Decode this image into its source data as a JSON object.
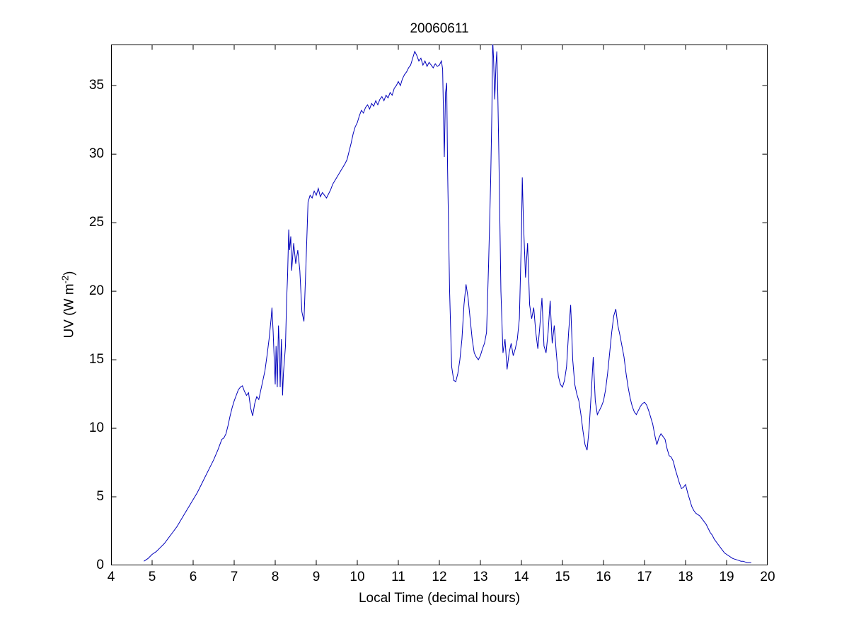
{
  "figure": {
    "background": "#ffffff"
  },
  "chart_data": {
    "type": "line",
    "title": "20060611",
    "xlabel": "Local Time (decimal hours)",
    "ylabel_parts": {
      "prefix": "UV (W m",
      "sup": "-2",
      "suffix": ")"
    },
    "xlim": [
      4,
      20
    ],
    "ylim": [
      0,
      38
    ],
    "xticks": [
      4,
      5,
      6,
      7,
      8,
      9,
      10,
      11,
      12,
      13,
      14,
      15,
      16,
      17,
      18,
      19,
      20
    ],
    "yticks": [
      0,
      5,
      10,
      15,
      20,
      25,
      30,
      35
    ],
    "grid": false,
    "legend": "none",
    "tick_direction": "in",
    "box": true,
    "line_color": "#0000bb",
    "axis_color": "#000000",
    "series": [
      {
        "points": [
          [
            4.8,
            0.3
          ],
          [
            4.9,
            0.5
          ],
          [
            5.0,
            0.8
          ],
          [
            5.1,
            1.0
          ],
          [
            5.2,
            1.3
          ],
          [
            5.3,
            1.6
          ],
          [
            5.4,
            2.0
          ],
          [
            5.5,
            2.4
          ],
          [
            5.6,
            2.8
          ],
          [
            5.7,
            3.3
          ],
          [
            5.8,
            3.8
          ],
          [
            5.9,
            4.3
          ],
          [
            6.0,
            4.8
          ],
          [
            6.1,
            5.3
          ],
          [
            6.2,
            5.9
          ],
          [
            6.3,
            6.5
          ],
          [
            6.4,
            7.1
          ],
          [
            6.5,
            7.7
          ],
          [
            6.6,
            8.4
          ],
          [
            6.65,
            8.8
          ],
          [
            6.7,
            9.2
          ],
          [
            6.75,
            9.3
          ],
          [
            6.8,
            9.6
          ],
          [
            6.85,
            10.2
          ],
          [
            6.9,
            10.9
          ],
          [
            6.95,
            11.5
          ],
          [
            7.0,
            12.0
          ],
          [
            7.05,
            12.4
          ],
          [
            7.1,
            12.8
          ],
          [
            7.15,
            13.0
          ],
          [
            7.2,
            13.1
          ],
          [
            7.25,
            12.7
          ],
          [
            7.3,
            12.4
          ],
          [
            7.35,
            12.6
          ],
          [
            7.4,
            11.5
          ],
          [
            7.45,
            10.9
          ],
          [
            7.5,
            11.8
          ],
          [
            7.55,
            12.3
          ],
          [
            7.6,
            12.1
          ],
          [
            7.65,
            12.8
          ],
          [
            7.7,
            13.5
          ],
          [
            7.75,
            14.2
          ],
          [
            7.8,
            15.3
          ],
          [
            7.85,
            16.5
          ],
          [
            7.9,
            18.0
          ],
          [
            7.92,
            18.8
          ],
          [
            7.95,
            17.0
          ],
          [
            8.0,
            13.2
          ],
          [
            8.02,
            16.0
          ],
          [
            8.05,
            13.0
          ],
          [
            8.08,
            17.5
          ],
          [
            8.1,
            16.0
          ],
          [
            8.12,
            13.0
          ],
          [
            8.15,
            16.5
          ],
          [
            8.18,
            12.4
          ],
          [
            8.2,
            14.0
          ],
          [
            8.25,
            16.0
          ],
          [
            8.28,
            19.5
          ],
          [
            8.3,
            21.0
          ],
          [
            8.33,
            24.5
          ],
          [
            8.35,
            23.0
          ],
          [
            8.38,
            24.0
          ],
          [
            8.4,
            21.5
          ],
          [
            8.45,
            23.5
          ],
          [
            8.5,
            22.0
          ],
          [
            8.55,
            23.0
          ],
          [
            8.6,
            21.5
          ],
          [
            8.65,
            18.5
          ],
          [
            8.7,
            17.8
          ],
          [
            8.75,
            22.0
          ],
          [
            8.8,
            26.5
          ],
          [
            8.85,
            27.0
          ],
          [
            8.9,
            26.8
          ],
          [
            8.95,
            27.3
          ],
          [
            9.0,
            27.0
          ],
          [
            9.05,
            27.5
          ],
          [
            9.1,
            26.9
          ],
          [
            9.15,
            27.2
          ],
          [
            9.2,
            27.0
          ],
          [
            9.25,
            26.8
          ],
          [
            9.3,
            27.1
          ],
          [
            9.35,
            27.4
          ],
          [
            9.4,
            27.8
          ],
          [
            9.5,
            28.3
          ],
          [
            9.6,
            28.8
          ],
          [
            9.7,
            29.3
          ],
          [
            9.75,
            29.6
          ],
          [
            9.8,
            30.2
          ],
          [
            9.85,
            30.8
          ],
          [
            9.9,
            31.5
          ],
          [
            9.95,
            32.0
          ],
          [
            10.0,
            32.3
          ],
          [
            10.05,
            32.8
          ],
          [
            10.1,
            33.2
          ],
          [
            10.15,
            33.0
          ],
          [
            10.2,
            33.4
          ],
          [
            10.25,
            33.6
          ],
          [
            10.3,
            33.3
          ],
          [
            10.35,
            33.7
          ],
          [
            10.4,
            33.5
          ],
          [
            10.45,
            33.9
          ],
          [
            10.5,
            33.6
          ],
          [
            10.55,
            34.0
          ],
          [
            10.6,
            34.2
          ],
          [
            10.65,
            33.9
          ],
          [
            10.7,
            34.3
          ],
          [
            10.75,
            34.1
          ],
          [
            10.8,
            34.5
          ],
          [
            10.85,
            34.3
          ],
          [
            10.9,
            34.8
          ],
          [
            10.95,
            35.0
          ],
          [
            11.0,
            35.3
          ],
          [
            11.05,
            35.0
          ],
          [
            11.1,
            35.5
          ],
          [
            11.15,
            35.8
          ],
          [
            11.2,
            36.0
          ],
          [
            11.25,
            36.3
          ],
          [
            11.3,
            36.5
          ],
          [
            11.35,
            37.0
          ],
          [
            11.4,
            37.5
          ],
          [
            11.45,
            37.2
          ],
          [
            11.5,
            36.8
          ],
          [
            11.55,
            37.0
          ],
          [
            11.6,
            36.5
          ],
          [
            11.65,
            36.8
          ],
          [
            11.7,
            36.4
          ],
          [
            11.75,
            36.7
          ],
          [
            11.8,
            36.5
          ],
          [
            11.85,
            36.3
          ],
          [
            11.9,
            36.6
          ],
          [
            11.95,
            36.4
          ],
          [
            12.0,
            36.5
          ],
          [
            12.05,
            36.8
          ],
          [
            12.08,
            36.2
          ],
          [
            12.1,
            33.0
          ],
          [
            12.12,
            29.8
          ],
          [
            12.15,
            34.5
          ],
          [
            12.18,
            35.2
          ],
          [
            12.2,
            29.0
          ],
          [
            12.25,
            20.0
          ],
          [
            12.3,
            14.5
          ],
          [
            12.35,
            13.5
          ],
          [
            12.4,
            13.4
          ],
          [
            12.45,
            14.0
          ],
          [
            12.5,
            15.0
          ],
          [
            12.55,
            16.5
          ],
          [
            12.6,
            19.0
          ],
          [
            12.65,
            20.5
          ],
          [
            12.7,
            19.5
          ],
          [
            12.75,
            18.0
          ],
          [
            12.8,
            16.5
          ],
          [
            12.85,
            15.5
          ],
          [
            12.9,
            15.2
          ],
          [
            12.95,
            15.0
          ],
          [
            13.0,
            15.3
          ],
          [
            13.05,
            15.8
          ],
          [
            13.1,
            16.2
          ],
          [
            13.15,
            17.0
          ],
          [
            13.2,
            22.0
          ],
          [
            13.25,
            28.0
          ],
          [
            13.28,
            33.0
          ],
          [
            13.3,
            38.3
          ],
          [
            13.32,
            37.0
          ],
          [
            13.35,
            34.0
          ],
          [
            13.38,
            36.5
          ],
          [
            13.4,
            37.5
          ],
          [
            13.42,
            35.0
          ],
          [
            13.45,
            30.0
          ],
          [
            13.5,
            20.0
          ],
          [
            13.55,
            15.5
          ],
          [
            13.6,
            16.5
          ],
          [
            13.65,
            14.3
          ],
          [
            13.7,
            15.5
          ],
          [
            13.75,
            16.2
          ],
          [
            13.8,
            15.3
          ],
          [
            13.85,
            15.8
          ],
          [
            13.9,
            16.5
          ],
          [
            13.95,
            18.0
          ],
          [
            14.0,
            24.0
          ],
          [
            14.02,
            28.3
          ],
          [
            14.05,
            25.0
          ],
          [
            14.1,
            21.0
          ],
          [
            14.15,
            23.5
          ],
          [
            14.2,
            19.0
          ],
          [
            14.25,
            18.0
          ],
          [
            14.3,
            18.8
          ],
          [
            14.35,
            17.0
          ],
          [
            14.4,
            15.8
          ],
          [
            14.45,
            17.5
          ],
          [
            14.5,
            19.5
          ],
          [
            14.55,
            16.0
          ],
          [
            14.6,
            15.5
          ],
          [
            14.65,
            17.0
          ],
          [
            14.7,
            19.3
          ],
          [
            14.75,
            16.2
          ],
          [
            14.8,
            17.5
          ],
          [
            14.85,
            15.5
          ],
          [
            14.9,
            13.8
          ],
          [
            14.95,
            13.2
          ],
          [
            15.0,
            13.0
          ],
          [
            15.05,
            13.5
          ],
          [
            15.1,
            14.5
          ],
          [
            15.15,
            17.0
          ],
          [
            15.2,
            19.0
          ],
          [
            15.25,
            15.0
          ],
          [
            15.3,
            13.2
          ],
          [
            15.35,
            12.5
          ],
          [
            15.4,
            12.0
          ],
          [
            15.45,
            11.0
          ],
          [
            15.5,
            9.8
          ],
          [
            15.55,
            8.8
          ],
          [
            15.6,
            8.4
          ],
          [
            15.65,
            10.0
          ],
          [
            15.7,
            12.5
          ],
          [
            15.75,
            15.2
          ],
          [
            15.8,
            12.0
          ],
          [
            15.85,
            11.0
          ],
          [
            15.9,
            11.3
          ],
          [
            15.95,
            11.6
          ],
          [
            16.0,
            12.0
          ],
          [
            16.05,
            12.8
          ],
          [
            16.1,
            14.0
          ],
          [
            16.15,
            15.5
          ],
          [
            16.2,
            17.0
          ],
          [
            16.25,
            18.2
          ],
          [
            16.3,
            18.7
          ],
          [
            16.35,
            17.5
          ],
          [
            16.4,
            16.8
          ],
          [
            16.45,
            16.0
          ],
          [
            16.5,
            15.2
          ],
          [
            16.55,
            14.0
          ],
          [
            16.6,
            13.0
          ],
          [
            16.65,
            12.2
          ],
          [
            16.7,
            11.6
          ],
          [
            16.75,
            11.2
          ],
          [
            16.8,
            11.0
          ],
          [
            16.85,
            11.3
          ],
          [
            16.9,
            11.6
          ],
          [
            16.95,
            11.8
          ],
          [
            17.0,
            11.9
          ],
          [
            17.05,
            11.7
          ],
          [
            17.1,
            11.3
          ],
          [
            17.15,
            10.8
          ],
          [
            17.2,
            10.3
          ],
          [
            17.25,
            9.5
          ],
          [
            17.3,
            8.8
          ],
          [
            17.35,
            9.3
          ],
          [
            17.4,
            9.6
          ],
          [
            17.45,
            9.4
          ],
          [
            17.5,
            9.2
          ],
          [
            17.55,
            8.5
          ],
          [
            17.6,
            8.0
          ],
          [
            17.65,
            7.9
          ],
          [
            17.7,
            7.6
          ],
          [
            17.75,
            7.0
          ],
          [
            17.8,
            6.5
          ],
          [
            17.85,
            6.0
          ],
          [
            17.9,
            5.6
          ],
          [
            17.95,
            5.7
          ],
          [
            18.0,
            5.9
          ],
          [
            18.05,
            5.3
          ],
          [
            18.1,
            4.8
          ],
          [
            18.15,
            4.3
          ],
          [
            18.2,
            4.0
          ],
          [
            18.25,
            3.8
          ],
          [
            18.3,
            3.7
          ],
          [
            18.35,
            3.6
          ],
          [
            18.4,
            3.4
          ],
          [
            18.45,
            3.2
          ],
          [
            18.5,
            3.0
          ],
          [
            18.55,
            2.7
          ],
          [
            18.6,
            2.4
          ],
          [
            18.65,
            2.2
          ],
          [
            18.7,
            1.9
          ],
          [
            18.75,
            1.7
          ],
          [
            18.8,
            1.5
          ],
          [
            18.85,
            1.3
          ],
          [
            18.9,
            1.1
          ],
          [
            18.95,
            0.9
          ],
          [
            19.0,
            0.8
          ],
          [
            19.05,
            0.7
          ],
          [
            19.1,
            0.6
          ],
          [
            19.15,
            0.5
          ],
          [
            19.2,
            0.45
          ],
          [
            19.25,
            0.4
          ],
          [
            19.3,
            0.35
          ],
          [
            19.35,
            0.3
          ],
          [
            19.4,
            0.3
          ],
          [
            19.45,
            0.25
          ],
          [
            19.5,
            0.2
          ],
          [
            19.55,
            0.2
          ],
          [
            19.6,
            0.2
          ]
        ]
      }
    ]
  }
}
